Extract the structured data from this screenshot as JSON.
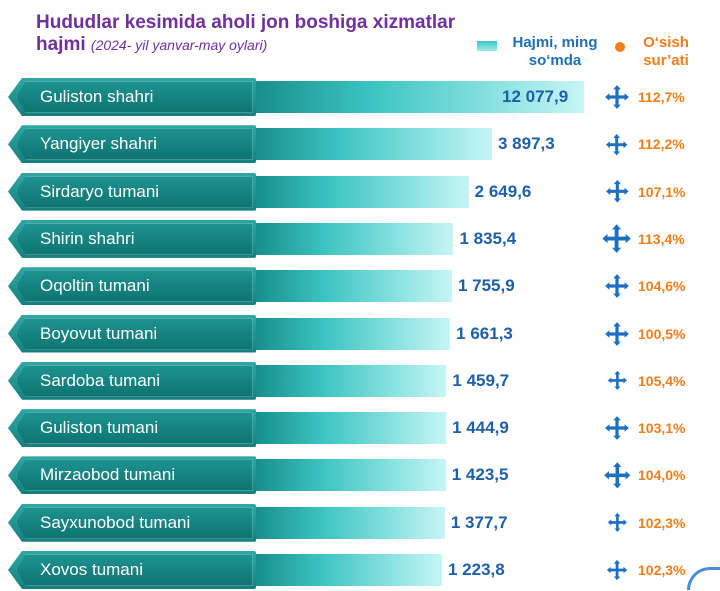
{
  "header": {
    "title": "Hududlar kesimida aholi jon boshiga xizmatlar hajmi",
    "subtitle": "(2024- yil yanvar-may oylari)"
  },
  "legend": {
    "bar_label": "Hajmi, ming so‘mda",
    "dot_label": "O‘sish sur’ati"
  },
  "colors": {
    "title": "#7030a0",
    "values": "#1e5fa8",
    "growth": "#f07e1b",
    "label_box": "#14807e",
    "bar": "#3cc4c2"
  },
  "chart_data": {
    "type": "bar",
    "orientation": "horizontal",
    "categories": [
      "Guliston shahri",
      "Yangiyer shahri",
      "Sirdaryo tumani",
      "Shirin shahri",
      "Oqoltin tumani",
      "Boyovut tumani",
      "Sardoba tumani",
      "Guliston tumani",
      "Mirzaobod tumani",
      "Sayxunobod tumani",
      "Xovos tumani"
    ],
    "values": [
      12077.9,
      3897.3,
      2649.6,
      1835.4,
      1755.9,
      1661.3,
      1459.7,
      1444.9,
      1423.5,
      1377.7,
      1223.8
    ],
    "value_labels": [
      "12 077,9",
      "3 897,3",
      "2 649,6",
      "1 835,4",
      "1 755,9",
      "1 661,3",
      "1 459,7",
      "1 444,9",
      "1 423,5",
      "1 377,7",
      "1 223,8"
    ],
    "growth_labels": [
      "112,7%",
      "112,2%",
      "107,1%",
      "113,4%",
      "104,6%",
      "100,5%",
      "105,4%",
      "103,1%",
      "104,0%",
      "102,3%",
      "102,3%"
    ],
    "growth_icon": "arrows-expand-icon"
  }
}
